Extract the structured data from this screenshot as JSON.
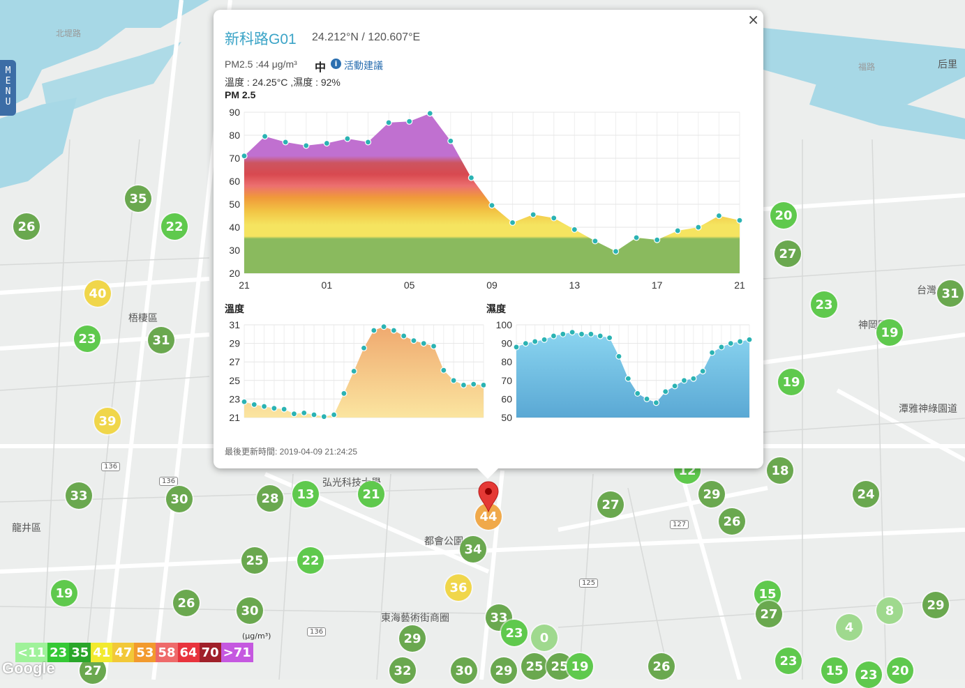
{
  "map": {
    "place_labels": [
      {
        "text": "梧棲區",
        "x": 208,
        "y": 454
      },
      {
        "text": "龍井區",
        "x": 40,
        "y": 756
      },
      {
        "text": "神岡區",
        "x": 1252,
        "y": 464
      },
      {
        "text": "潭雅神綠園道",
        "x": 1334,
        "y": 584
      },
      {
        "text": "都會公園",
        "x": 640,
        "y": 774
      },
      {
        "text": "東海藝術街商圈",
        "x": 602,
        "y": 884
      },
      {
        "text": "弘光科技大學",
        "x": 510,
        "y": 690
      },
      {
        "text": "台灣",
        "x": 1330,
        "y": 414
      },
      {
        "text": "后里",
        "x": 1362,
        "y": 90
      }
    ],
    "route_labels": [
      "136",
      "136",
      "125",
      "127",
      "136"
    ],
    "markers": [
      {
        "v": "26",
        "c": "dark"
      },
      {
        "v": "35",
        "c": "dark"
      },
      {
        "v": "22",
        "c": "green"
      },
      {
        "v": "40",
        "c": "yellow"
      },
      {
        "v": "23",
        "c": "green"
      },
      {
        "v": "31",
        "c": "dark"
      },
      {
        "v": "39",
        "c": "yellow"
      },
      {
        "v": "33",
        "c": "dark"
      },
      {
        "v": "30",
        "c": "dark"
      },
      {
        "v": "28",
        "c": "dark"
      },
      {
        "v": "13",
        "c": "green"
      },
      {
        "v": "21",
        "c": "green"
      },
      {
        "v": "25",
        "c": "dark"
      },
      {
        "v": "22",
        "c": "green"
      },
      {
        "v": "19",
        "c": "green"
      },
      {
        "v": "26",
        "c": "dark"
      },
      {
        "v": "30",
        "c": "dark"
      },
      {
        "v": "44",
        "c": "orange"
      },
      {
        "v": "34",
        "c": "dark"
      },
      {
        "v": "36",
        "c": "yellow"
      },
      {
        "v": "27",
        "c": "dark"
      },
      {
        "v": "29",
        "c": "dark"
      },
      {
        "v": "26",
        "c": "dark"
      },
      {
        "v": "12",
        "c": "green"
      },
      {
        "v": "18",
        "c": "dark"
      },
      {
        "v": "24",
        "c": "dark"
      },
      {
        "v": "20",
        "c": "green"
      },
      {
        "v": "27",
        "c": "dark"
      },
      {
        "v": "23",
        "c": "green"
      },
      {
        "v": "19",
        "c": "green"
      },
      {
        "v": "19",
        "c": "green"
      },
      {
        "v": "31",
        "c": "dark"
      },
      {
        "v": "15",
        "c": "green"
      },
      {
        "v": "27",
        "c": "dark"
      },
      {
        "v": "29",
        "c": "dark"
      },
      {
        "v": "8",
        "c": "light"
      },
      {
        "v": "4",
        "c": "light"
      },
      {
        "v": "23",
        "c": "green"
      },
      {
        "v": "15",
        "c": "green"
      },
      {
        "v": "20",
        "c": "green"
      },
      {
        "v": "33",
        "c": "dark"
      },
      {
        "v": "29",
        "c": "dark"
      },
      {
        "v": "23",
        "c": "green"
      },
      {
        "v": "0",
        "c": "light"
      },
      {
        "v": "32",
        "c": "dark"
      },
      {
        "v": "30",
        "c": "dark"
      },
      {
        "v": "29",
        "c": "dark"
      },
      {
        "v": "25",
        "c": "dark"
      },
      {
        "v": "25",
        "c": "dark"
      },
      {
        "v": "19",
        "c": "green"
      },
      {
        "v": "26",
        "c": "dark"
      },
      {
        "v": "27",
        "c": "dark"
      },
      {
        "v": "23",
        "c": "green"
      }
    ]
  },
  "menu": {
    "label": "MENU"
  },
  "popup": {
    "station_name": "新科路G01",
    "coords": "24.212°N / 120.607°E",
    "pm_line": "PM2.5 :44 μg/m³",
    "pm_level": "中",
    "advice_link": "活動建議",
    "weather_line": "溫度 : 24.25°C ,濕度 : 92%",
    "updated": "最後更新時間: 2019-04-09 21:24:25",
    "close": "×"
  },
  "chart_data": [
    {
      "type": "area",
      "title": "PM 2.5",
      "x_ticks": [
        "21",
        "01",
        "05",
        "09",
        "13",
        "17",
        "21"
      ],
      "ylim": [
        20,
        90
      ],
      "y_ticks": [
        20,
        30,
        40,
        50,
        60,
        70,
        80,
        90
      ],
      "values": [
        71,
        79.5,
        77,
        75.5,
        76.5,
        78.5,
        77,
        85.5,
        86,
        89.5,
        77.5,
        61.5,
        49.5,
        42,
        45.5,
        44,
        39,
        34,
        29.5,
        35.5,
        34.5,
        38.5,
        40,
        45,
        43
      ]
    },
    {
      "type": "area",
      "title": "溫度",
      "ylim": [
        21,
        31
      ],
      "y_ticks": [
        21,
        23,
        25,
        27,
        29,
        31
      ],
      "values": [
        22.7,
        22.4,
        22.2,
        22,
        21.9,
        21.4,
        21.5,
        21.3,
        21.1,
        21.3,
        23.6,
        26,
        28.5,
        30.4,
        30.8,
        30.4,
        29.8,
        29.3,
        29,
        28.7,
        26.1,
        25,
        24.5,
        24.6,
        24.5
      ]
    },
    {
      "type": "area",
      "title": "濕度",
      "ylim": [
        50,
        100
      ],
      "y_ticks": [
        50,
        60,
        70,
        80,
        90,
        100
      ],
      "values": [
        88,
        90,
        91,
        92,
        94,
        95,
        96,
        95,
        95,
        94,
        93,
        83,
        71,
        63,
        60,
        58,
        64,
        67,
        70,
        71,
        75,
        85,
        88,
        90,
        91,
        92
      ]
    }
  ],
  "legend": {
    "unit": "(μg/m³)",
    "cells": [
      {
        "label": "<11",
        "color": "#9ff29a"
      },
      {
        "label": "23",
        "color": "#35c935"
      },
      {
        "label": "35",
        "color": "#2aa62a"
      },
      {
        "label": "41",
        "color": "#f2ea2e"
      },
      {
        "label": "47",
        "color": "#f2c838"
      },
      {
        "label": "53",
        "color": "#f29a2e"
      },
      {
        "label": "58",
        "color": "#ee6a6a"
      },
      {
        "label": "64",
        "color": "#e8333d"
      },
      {
        "label": "70",
        "color": "#a0202a"
      },
      {
        "label": ">71",
        "color": "#c558e0"
      }
    ]
  },
  "google": "Google"
}
